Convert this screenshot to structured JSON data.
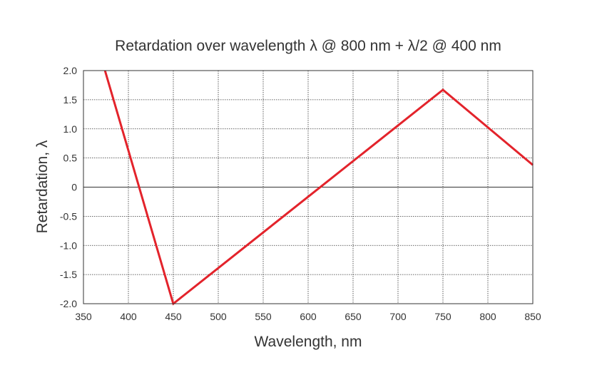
{
  "chart_data": {
    "type": "line",
    "title": "Retardation over wavelength λ @ 800 nm + λ/2 @ 400 nm",
    "xlabel": "Wavelength, nm",
    "ylabel": "Retardation, λ",
    "xlim": [
      350,
      850
    ],
    "ylim": [
      -2.0,
      2.0
    ],
    "x_ticks": [
      350,
      400,
      450,
      500,
      550,
      600,
      650,
      700,
      750,
      800,
      850
    ],
    "x_tick_labels": [
      "350",
      "400",
      "450",
      "500",
      "550",
      "600",
      "650",
      "700",
      "750",
      "800",
      "850"
    ],
    "y_ticks": [
      2.0,
      1.5,
      1.0,
      0.5,
      0,
      -0.5,
      -1.0,
      -1.5,
      -2.0
    ],
    "y_tick_labels": [
      "2.0",
      "1.5",
      "1.0",
      "0.5",
      "0",
      "-0.5",
      "-1.0",
      "-1.5",
      "-2.0"
    ],
    "grid": true,
    "series": [
      {
        "color": "#e3232b",
        "points": [
          [
            374,
            2.0
          ],
          [
            449,
            -1.95
          ],
          [
            450,
            -2.0
          ],
          [
            750,
            1.67
          ],
          [
            850,
            0.38
          ]
        ]
      }
    ]
  }
}
